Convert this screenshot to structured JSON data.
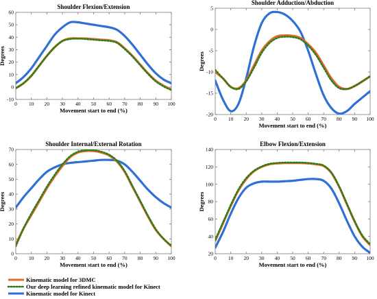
{
  "colors": {
    "threedmc": "#e06a2a",
    "dl": "#2f7d1a",
    "kinect": "#2f6fd6",
    "axis": "#7a7a7a"
  },
  "legend": [
    {
      "label": "Kinematic model for 3DMC",
      "style": "solid-orange"
    },
    {
      "label": "Our deep learning refined kinematic model for Kinect",
      "style": "dotted-green"
    },
    {
      "label": "Kinematic model for Kinect",
      "style": "solid-blue"
    }
  ],
  "chart_data": [
    {
      "type": "line",
      "title": "Shoulder Flexion/Extension",
      "xlabel": "Movement start to end (%)",
      "ylabel": "Degrees",
      "xlim": [
        0,
        100
      ],
      "ylim": [
        -10,
        60
      ],
      "xticks": [
        0,
        10,
        20,
        30,
        40,
        50,
        60,
        70,
        80,
        90,
        100
      ],
      "yticks": [
        -10,
        0,
        10,
        20,
        30,
        40,
        50,
        60
      ],
      "x": [
        0,
        5,
        10,
        15,
        20,
        25,
        30,
        35,
        40,
        45,
        50,
        55,
        60,
        65,
        70,
        75,
        80,
        85,
        90,
        95,
        100
      ],
      "series": [
        {
          "name": "Kinematic model for 3DMC",
          "values": [
            -1,
            3,
            9,
            17,
            25,
            32,
            37,
            39,
            39,
            39,
            38.5,
            38,
            37.5,
            36,
            31,
            25,
            18,
            11,
            5,
            1,
            -2
          ]
        },
        {
          "name": "Our deep learning refined kinematic model for Kinect",
          "values": [
            -1,
            3,
            9,
            17,
            25,
            32,
            37,
            38.5,
            39,
            38.5,
            38,
            37.5,
            37,
            35.5,
            30.5,
            24.5,
            17.5,
            10.5,
            4.5,
            0.5,
            -2.5
          ]
        },
        {
          "name": "Kinematic model for Kinect",
          "values": [
            3,
            8,
            15,
            24,
            33,
            42,
            48,
            52,
            52,
            51,
            50,
            49,
            48,
            46,
            41,
            34,
            26,
            18,
            11,
            6,
            3
          ]
        }
      ]
    },
    {
      "type": "line",
      "title": "Shoulder Adduction/Abduction",
      "xlabel": "Movement start to end (%)",
      "ylabel": "Degrees",
      "xlim": [
        0,
        100
      ],
      "ylim": [
        -20,
        5
      ],
      "xticks": [
        0,
        10,
        20,
        30,
        40,
        50,
        60,
        70,
        80,
        90,
        100
      ],
      "yticks": [
        -20,
        -15,
        -10,
        -5,
        0,
        5
      ],
      "x": [
        0,
        5,
        10,
        15,
        20,
        25,
        30,
        35,
        40,
        45,
        50,
        55,
        60,
        65,
        70,
        75,
        80,
        85,
        90,
        95,
        100
      ],
      "series": [
        {
          "name": "Kinematic model for 3DMC",
          "values": [
            -10,
            -11.5,
            -13.5,
            -13.8,
            -12,
            -8.5,
            -5,
            -2.8,
            -1.6,
            -1.4,
            -1.5,
            -2,
            -3.5,
            -5.5,
            -8.5,
            -11.5,
            -13.5,
            -14,
            -13.3,
            -12.2,
            -11
          ]
        },
        {
          "name": "Our deep learning refined kinematic model for Kinect",
          "values": [
            -9.5,
            -11.5,
            -13.5,
            -14,
            -12.2,
            -9,
            -5.5,
            -3.2,
            -2,
            -1.7,
            -1.8,
            -2.3,
            -3.8,
            -6,
            -9,
            -12,
            -13.8,
            -14,
            -13.3,
            -12.2,
            -11
          ]
        },
        {
          "name": "Kinematic model for Kinect",
          "values": [
            -12,
            -16.5,
            -19.2,
            -17.5,
            -11.5,
            -4,
            1.5,
            3.8,
            4.1,
            3.5,
            2,
            -0.5,
            -5,
            -10.5,
            -15.5,
            -18.5,
            -19.8,
            -19.2,
            -17.5,
            -16,
            -14.5
          ]
        }
      ]
    },
    {
      "type": "line",
      "title": "Shoulder Internal/External Rotation",
      "xlabel": "Movement start to end (%)",
      "ylabel": "Degrees",
      "xlim": [
        0,
        100
      ],
      "ylim": [
        0,
        70
      ],
      "xticks": [
        0,
        10,
        20,
        30,
        40,
        50,
        60,
        70,
        80,
        90,
        100
      ],
      "yticks": [
        0,
        10,
        20,
        30,
        40,
        50,
        60,
        70
      ],
      "x": [
        0,
        5,
        10,
        15,
        20,
        25,
        30,
        35,
        40,
        45,
        50,
        55,
        60,
        65,
        70,
        75,
        80,
        85,
        90,
        95,
        100
      ],
      "series": [
        {
          "name": "Kinematic model for 3DMC",
          "values": [
            6,
            17,
            26,
            35,
            44,
            52,
            59,
            65,
            68,
            69,
            69,
            68,
            66,
            62,
            55,
            45,
            35,
            25,
            16,
            10,
            5
          ]
        },
        {
          "name": "Our deep learning refined kinematic model for Kinect",
          "values": [
            5,
            17,
            27,
            36,
            45,
            53,
            60,
            65.5,
            68.5,
            69.5,
            69.5,
            68.5,
            66.5,
            62.5,
            55.5,
            45.5,
            35.5,
            25.5,
            16.5,
            10,
            5.5
          ]
        },
        {
          "name": "Kinematic model for Kinect",
          "values": [
            31,
            38,
            44,
            50,
            55,
            58,
            60,
            61,
            61.5,
            62,
            62.5,
            63,
            63,
            62.5,
            60,
            55,
            49,
            43,
            38,
            34,
            31
          ]
        }
      ]
    },
    {
      "type": "line",
      "title": "Elbow Flexion/Extension",
      "xlabel": "Movement start to end (%)",
      "ylabel": "Degrees",
      "xlim": [
        0,
        100
      ],
      "ylim": [
        20,
        140
      ],
      "xticks": [
        0,
        10,
        20,
        30,
        40,
        50,
        60,
        70,
        80,
        90,
        100
      ],
      "yticks": [
        20,
        40,
        60,
        80,
        100,
        120,
        140
      ],
      "x": [
        0,
        5,
        10,
        15,
        20,
        25,
        30,
        35,
        40,
        45,
        50,
        55,
        60,
        65,
        70,
        75,
        80,
        85,
        90,
        95,
        100
      ],
      "series": [
        {
          "name": "Kinematic model for 3DMC",
          "values": [
            35,
            55,
            75,
            93,
            106,
            115,
            120,
            123,
            124,
            124.5,
            124.5,
            124.5,
            124,
            123,
            121,
            113,
            97,
            77,
            57,
            40,
            30
          ]
        },
        {
          "name": "Our deep learning refined kinematic model for Kinect",
          "values": [
            36,
            56,
            76,
            94,
            107,
            115.5,
            120.5,
            123.5,
            124.5,
            125,
            125,
            125,
            124.5,
            123.5,
            121.5,
            113.5,
            97.5,
            77.5,
            57.5,
            41,
            31
          ]
        },
        {
          "name": "Kinematic model for Kinect",
          "values": [
            27,
            45,
            66,
            84,
            96,
            101,
            103,
            103,
            103,
            103.5,
            104,
            105,
            106,
            106,
            104,
            95,
            78,
            58,
            40,
            28,
            21
          ]
        }
      ]
    }
  ]
}
